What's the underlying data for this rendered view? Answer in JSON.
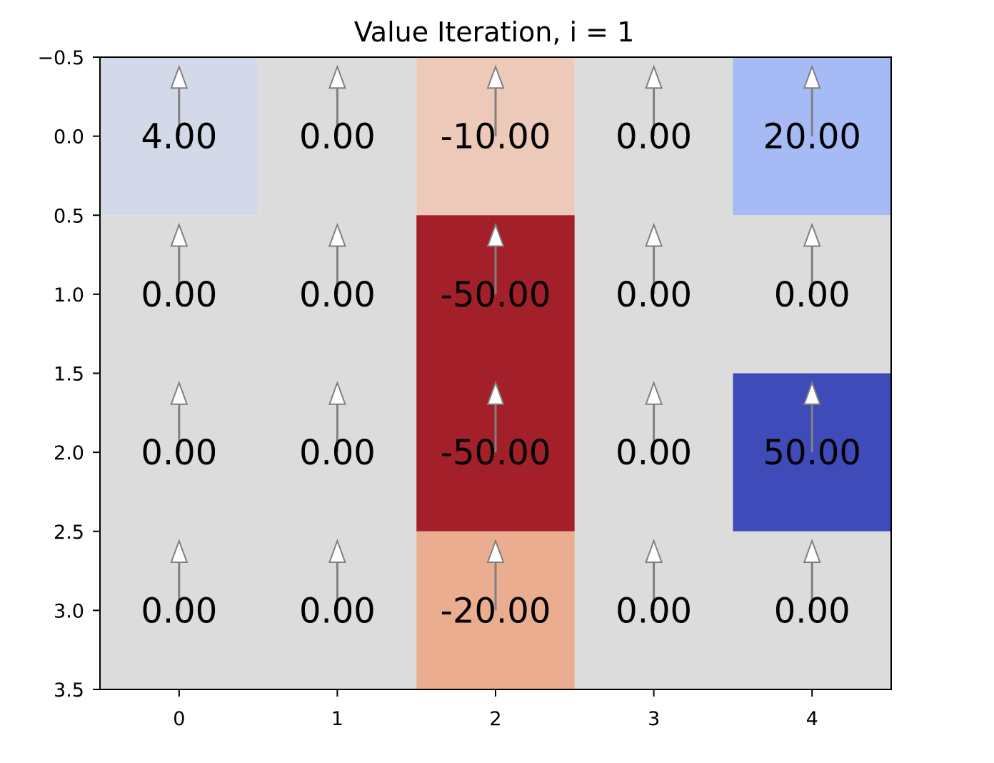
{
  "chart_data": {
    "type": "heatmap",
    "title": "Value Iteration, i = 1",
    "xlabel": "",
    "ylabel": "",
    "colormap": "coolwarm_r",
    "color_range": [
      -50,
      50
    ],
    "x_ticks": [
      0,
      1,
      2,
      3,
      4
    ],
    "y_ticks": [
      -0.5,
      0.0,
      0.5,
      1.0,
      1.5,
      2.0,
      2.5,
      3.0,
      3.5
    ],
    "x_tick_labels": [
      "0",
      "1",
      "2",
      "3",
      "4"
    ],
    "y_tick_labels": [
      "−0.5",
      "0.0",
      "0.5",
      "1.0",
      "1.5",
      "2.0",
      "2.5",
      "3.0",
      "3.5"
    ],
    "xlim": [
      -0.5,
      4.5
    ],
    "ylim": [
      3.5,
      -0.5
    ],
    "values": [
      [
        4.0,
        0.0,
        -10.0,
        0.0,
        20.0
      ],
      [
        0.0,
        0.0,
        -50.0,
        0.0,
        0.0
      ],
      [
        0.0,
        0.0,
        -50.0,
        0.0,
        50.0
      ],
      [
        0.0,
        0.0,
        -20.0,
        0.0,
        0.0
      ]
    ],
    "value_labels": [
      [
        "4.00",
        "0.00",
        "-10.00",
        "0.00",
        "20.00"
      ],
      [
        "0.00",
        "0.00",
        "-50.00",
        "0.00",
        "0.00"
      ],
      [
        "0.00",
        "0.00",
        "-50.00",
        "0.00",
        "50.00"
      ],
      [
        "0.00",
        "0.00",
        "-20.00",
        "0.00",
        "0.00"
      ]
    ],
    "policy_arrows": [
      [
        "up",
        "up",
        "up",
        "up",
        "up"
      ],
      [
        "up",
        "up",
        "up",
        "up",
        "up"
      ],
      [
        "up",
        "up",
        "up",
        "up",
        "up"
      ],
      [
        "up",
        "up",
        "up",
        "up",
        "up"
      ]
    ],
    "cell_colors": [
      [
        "#d3d9e8",
        "#dcdcdc",
        "#ecc9b9",
        "#dcdcdc",
        "#a6bbf6"
      ],
      [
        "#dcdcdc",
        "#dcdcdc",
        "#a3202b",
        "#dcdcdc",
        "#dcdcdc"
      ],
      [
        "#dcdcdc",
        "#dcdcdc",
        "#a3202b",
        "#dcdcdc",
        "#3f4bb8"
      ],
      [
        "#dcdcdc",
        "#dcdcdc",
        "#ebad90",
        "#dcdcdc",
        "#dcdcdc"
      ]
    ],
    "arrow_shaft_color": "#808080",
    "arrow_head_fill": "#ffffff",
    "arrow_head_stroke": "#808080",
    "grid": false,
    "legend": "none"
  }
}
